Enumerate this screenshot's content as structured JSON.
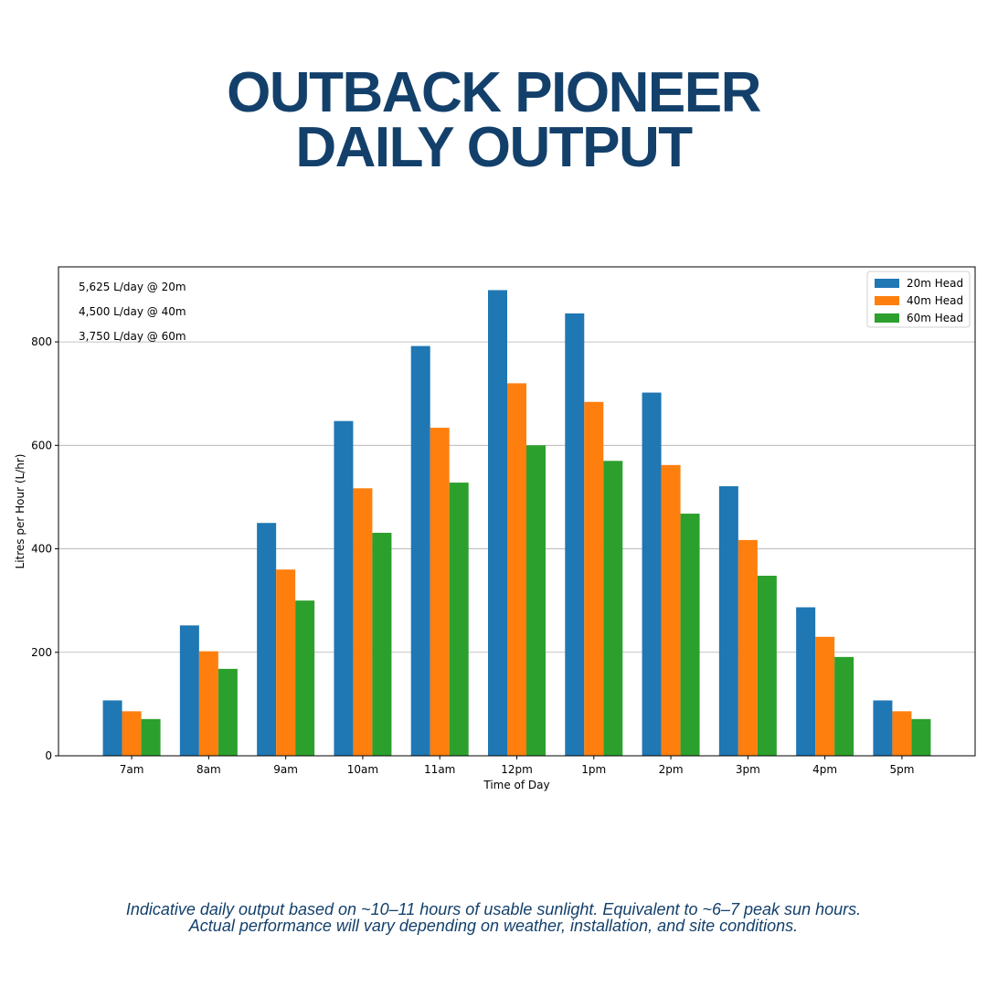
{
  "title": {
    "line1": "OUTBACK PIONEER",
    "line2": "DAILY OUTPUT"
  },
  "footnote": {
    "line1": "Indicative daily output based on ~10–11 hours of usable sunlight. Equivalent to ~6–7 peak sun hours.",
    "line2": "Actual performance will vary depending on weather, installation, and site conditions."
  },
  "chart_data": {
    "type": "bar",
    "title": "",
    "xlabel": "Time of Day",
    "ylabel": "Litres per Hour (L/hr)",
    "ylim": [
      0,
      945
    ],
    "yticks": [
      0,
      200,
      400,
      600,
      800
    ],
    "grid": "y",
    "legend_position": "top-right",
    "categories": [
      "7am",
      "8am",
      "9am",
      "10am",
      "11am",
      "12pm",
      "1pm",
      "2pm",
      "3pm",
      "4pm",
      "5pm"
    ],
    "series": [
      {
        "name": "20m Head",
        "color": "#1f77b4",
        "values": [
          107,
          252,
          450,
          647,
          792,
          900,
          855,
          702,
          521,
          287,
          107
        ]
      },
      {
        "name": "40m Head",
        "color": "#ff7f0e",
        "values": [
          86,
          202,
          360,
          517,
          634,
          720,
          684,
          562,
          417,
          230,
          86
        ]
      },
      {
        "name": "60m Head",
        "color": "#2ca02c",
        "values": [
          71,
          168,
          300,
          431,
          528,
          600,
          570,
          468,
          348,
          191,
          71
        ]
      }
    ],
    "annotations": [
      "5,625 L/day @ 20m",
      "4,500 L/day @ 40m",
      "3,750 L/day @ 60m"
    ]
  }
}
